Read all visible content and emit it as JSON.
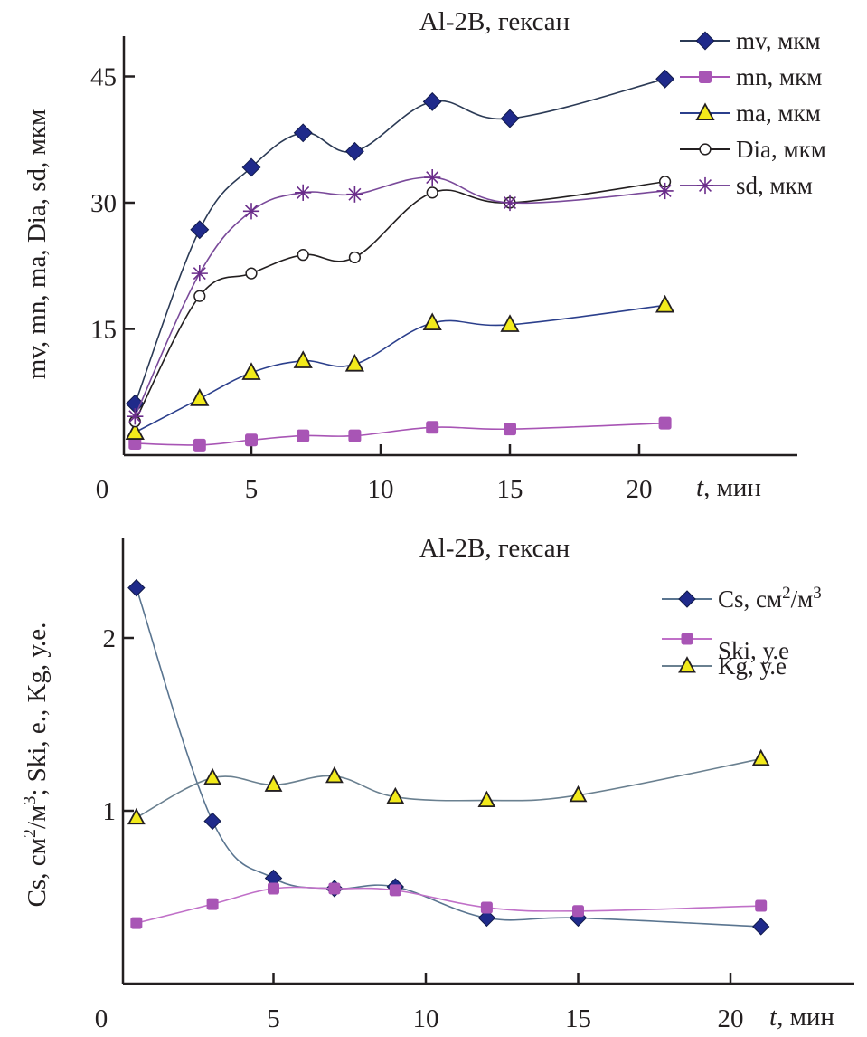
{
  "chart_data": [
    {
      "type": "line",
      "title": "Al-2B, гексан",
      "xlabel_italic": "t",
      "xlabel_rest": ", мин",
      "ylabel": "mv, mn, ma, Dia, sd, мкм",
      "xlim": [
        0,
        26
      ],
      "ylim": [
        0,
        50
      ],
      "xticks": [
        0,
        5,
        10,
        15,
        20
      ],
      "yticks": [
        15,
        30,
        45
      ],
      "grid": false,
      "legend_position": "top-right",
      "x": [
        0.5,
        3,
        5,
        7,
        9,
        12,
        15,
        21
      ],
      "series": [
        {
          "name": "mv, мкм",
          "marker": "diamond",
          "color": "#1f2a8a",
          "line_color": "#2b3a55",
          "values": [
            6.1,
            26.8,
            34.2,
            38.3,
            36.1,
            42.0,
            40.0,
            44.7
          ]
        },
        {
          "name": "mn, мкм",
          "marker": "square",
          "color": "#a855b5",
          "line_color": "#a855b5",
          "values": [
            1.4,
            1.2,
            1.8,
            2.3,
            2.3,
            3.3,
            3.1,
            3.8
          ]
        },
        {
          "name": "ma, мкм",
          "marker": "triangle",
          "color": "#f2ea1b",
          "line_color": "#2b3f8c",
          "values": [
            2.7,
            6.7,
            9.8,
            11.2,
            10.8,
            15.7,
            15.5,
            17.8
          ]
        },
        {
          "name": "Dia, мкм",
          "marker": "circle",
          "color": "#ffffff",
          "line_color": "#231f20",
          "values": [
            4.0,
            18.9,
            21.6,
            23.8,
            23.5,
            31.2,
            30.0,
            32.5
          ]
        },
        {
          "name": "sd, мкм",
          "marker": "star",
          "color": "#6a2c8a",
          "line_color": "#7a4a9a",
          "values": [
            4.6,
            21.6,
            29.0,
            31.2,
            31.0,
            33.0,
            30.0,
            31.4
          ]
        }
      ]
    },
    {
      "type": "line",
      "title": "Al-2B, гексан",
      "xlabel_italic": "t",
      "xlabel_rest": ", мин",
      "ylabel": "Cs, см²/м³; Ski, е., Kg, у.е.",
      "xlim": [
        0,
        24
      ],
      "ylim": [
        0,
        2.6
      ],
      "xticks": [
        0,
        5,
        10,
        15,
        20
      ],
      "yticks": [
        1,
        2
      ],
      "grid": false,
      "legend_position": "top-right",
      "x": [
        0.5,
        3,
        5,
        7,
        9,
        12,
        15,
        21
      ],
      "series": [
        {
          "name": "Cs, см²/м³",
          "name_base": "Cs, см",
          "name_sup1": "2",
          "name_mid": "/м",
          "name_sup2": "3",
          "marker": "diamond",
          "color": "#1f2a8a",
          "line_color": "#5a7590",
          "values": [
            2.29,
            0.94,
            0.61,
            0.55,
            0.56,
            0.38,
            0.38,
            0.33
          ]
        },
        {
          "name": "Ski, у.е",
          "marker": "square",
          "color": "#a855b5",
          "line_color": "#c070c8",
          "values": [
            0.35,
            0.46,
            0.55,
            0.55,
            0.54,
            0.44,
            0.42,
            0.45
          ]
        },
        {
          "name": "Kg, у.е",
          "marker": "triangle",
          "color": "#f2ea1b",
          "line_color": "#6a8090",
          "values": [
            0.96,
            1.19,
            1.15,
            1.2,
            1.08,
            1.06,
            1.09,
            1.3
          ]
        }
      ]
    }
  ]
}
